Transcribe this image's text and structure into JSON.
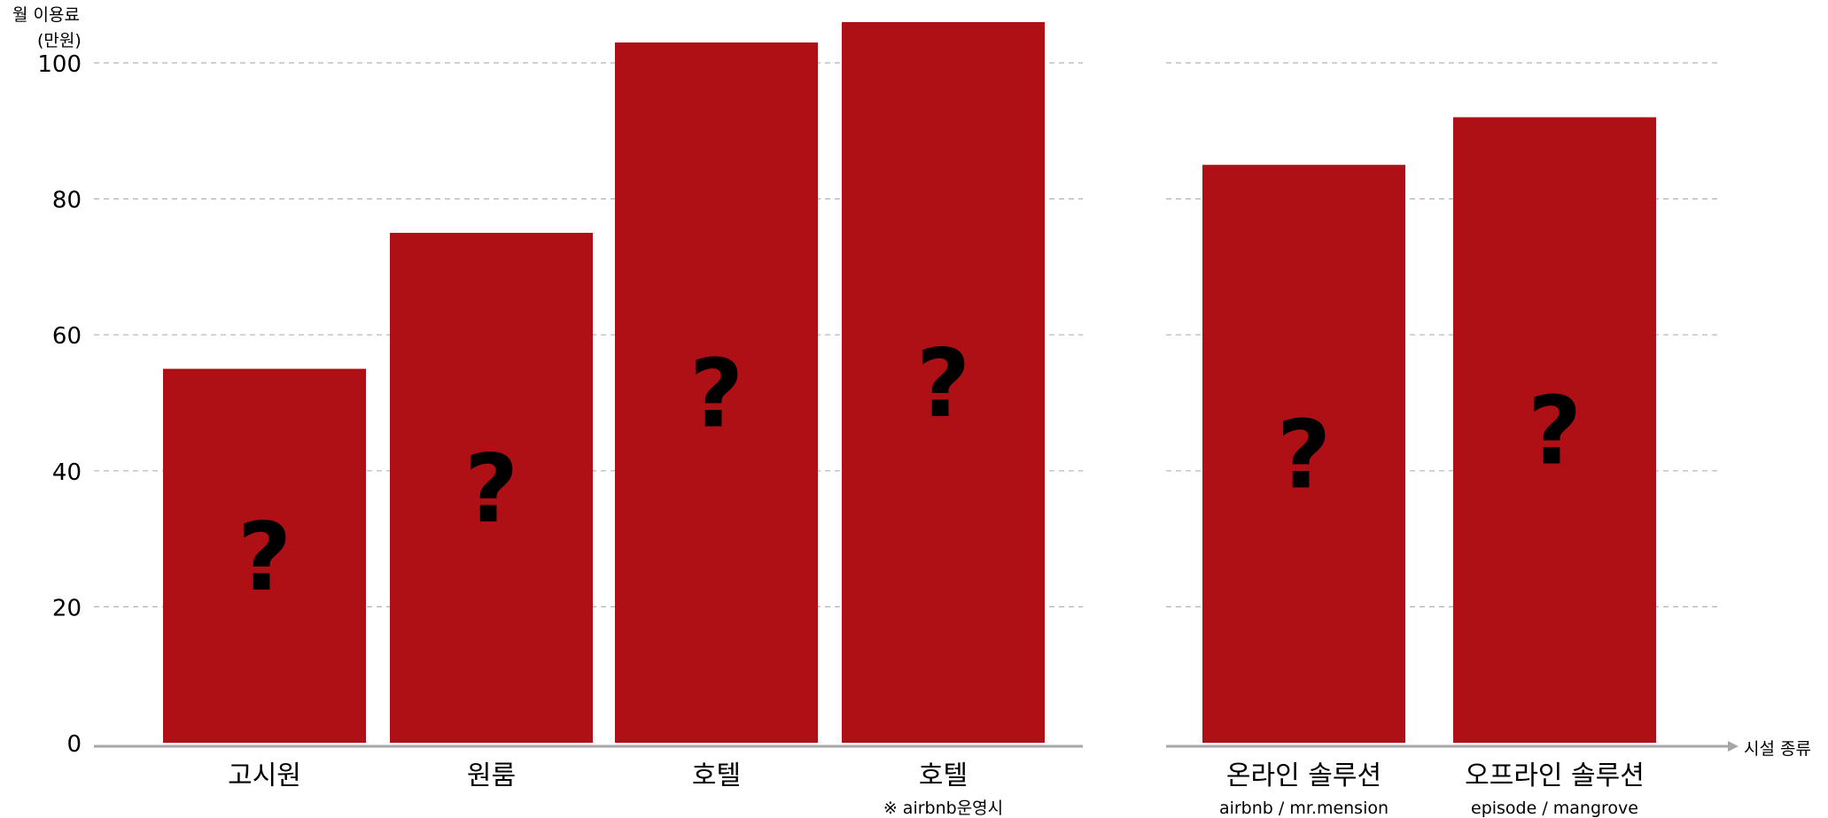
{
  "chart_data": {
    "type": "bar",
    "ylabel": [
      "월 이용료",
      "(만원)"
    ],
    "xlabel": "시설 종류",
    "ylim": [
      0,
      110
    ],
    "yticks": [
      0,
      20,
      40,
      60,
      80,
      100
    ],
    "grid": true,
    "groups": [
      {
        "categories": [
          "고시원",
          "원룸",
          "호텔",
          "호텔"
        ],
        "sublabels": [
          "",
          "",
          "",
          "※ airbnb운영시"
        ],
        "values": [
          55,
          75,
          103,
          106
        ],
        "bar_labels": [
          "?",
          "?",
          "?",
          "?"
        ]
      },
      {
        "categories": [
          "온라인 솔루션",
          "오프라인 솔루션"
        ],
        "sublabels": [
          "airbnb / mr.mension",
          "episode / mangrove"
        ],
        "values": [
          85,
          92
        ],
        "bar_labels": [
          "?",
          "?"
        ]
      }
    ],
    "colors": {
      "bar": "#ae1016",
      "axis": "#a6a6a6",
      "grid": "#b3b3b3"
    }
  }
}
